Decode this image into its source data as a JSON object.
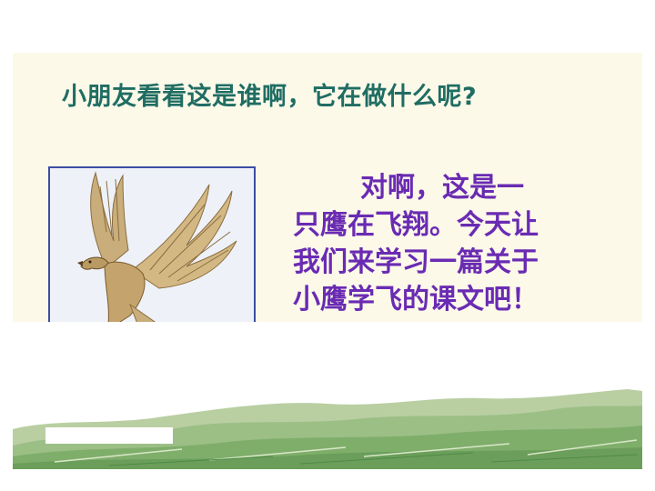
{
  "question": "小朋友看看这是谁啊，它在做什么呢?",
  "answer": {
    "lines": [
      "对啊，这是一",
      "只鹰在飞翔。今天让",
      "我们来学习一篇关于",
      "小鹰学飞的课文吧！"
    ]
  },
  "illustration": {
    "subject": "eagle-flying",
    "landscape": "green-hills-fields"
  },
  "colors": {
    "question_text": "#1f6d63",
    "answer_text": "#6a2bb3",
    "panel_background": "#fcf9e9",
    "frame_border": "#3b4ea3"
  }
}
